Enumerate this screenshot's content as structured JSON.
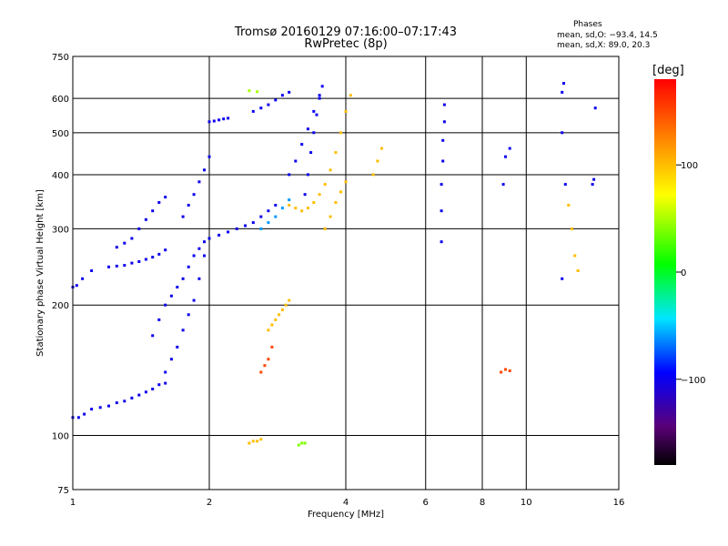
{
  "header": {
    "title_line1": "Tromsø 20160129 07:16:00–07:17:43",
    "title_line2": "RwPretec (8p)"
  },
  "stats": {
    "heading": "Phases",
    "line_o": "mean, sd,O: −93.4, 14.5",
    "line_x": "mean, sd,X: 89.0, 20.3"
  },
  "colorbar": {
    "label": "[deg]",
    "tick_labels": [
      "100",
      "0",
      "−100"
    ],
    "tick_values": [
      100,
      0,
      -100
    ],
    "range": [
      -180,
      180
    ]
  },
  "chart_data": {
    "type": "scatter",
    "title": "Tromsø 20160129 07:16:00–07:17:43",
    "subtitle": "RwPretec (8p)",
    "xlabel": "Frequency [MHz]",
    "ylabel": "Stationary phase Virtual Height [km]",
    "xscale": "log",
    "yscale": "log",
    "xlim": [
      1,
      16
    ],
    "ylim": [
      75,
      750
    ],
    "xticks": [
      1,
      2,
      4,
      6,
      8,
      10,
      16
    ],
    "xtick_labels": [
      "1",
      "2",
      "4",
      "6",
      "8",
      "10",
      "16"
    ],
    "yticks": [
      75,
      100,
      200,
      300,
      400,
      500,
      600,
      750
    ],
    "ytick_labels": [
      "75",
      "100",
      "200",
      "300",
      "400",
      "500",
      "600",
      "750"
    ],
    "grid": true,
    "color_variable": "phase [deg]",
    "traces": [
      {
        "phase": -100,
        "points": [
          [
            1.0,
            110
          ],
          [
            1.03,
            110
          ],
          [
            1.06,
            112
          ],
          [
            1.1,
            115
          ],
          [
            1.15,
            116
          ],
          [
            1.2,
            117
          ],
          [
            1.25,
            119
          ],
          [
            1.3,
            120
          ],
          [
            1.35,
            122
          ],
          [
            1.4,
            124
          ],
          [
            1.45,
            126
          ],
          [
            1.5,
            128
          ],
          [
            1.55,
            131
          ],
          [
            1.6,
            132
          ]
        ]
      },
      {
        "phase": -100,
        "points": [
          [
            1.0,
            220
          ],
          [
            1.02,
            222
          ],
          [
            1.05,
            230
          ],
          [
            1.1,
            240
          ]
        ]
      },
      {
        "phase": -100,
        "points": [
          [
            1.2,
            245
          ],
          [
            1.25,
            246
          ],
          [
            1.3,
            247
          ],
          [
            1.35,
            250
          ],
          [
            1.4,
            252
          ],
          [
            1.45,
            255
          ],
          [
            1.5,
            258
          ],
          [
            1.55,
            262
          ],
          [
            1.6,
            268
          ]
        ]
      },
      {
        "phase": -100,
        "points": [
          [
            1.25,
            272
          ],
          [
            1.3,
            278
          ],
          [
            1.35,
            285
          ],
          [
            1.4,
            300
          ],
          [
            1.45,
            315
          ],
          [
            1.5,
            330
          ],
          [
            1.55,
            345
          ],
          [
            1.6,
            355
          ]
        ]
      },
      {
        "phase": -100,
        "points": [
          [
            1.5,
            170
          ],
          [
            1.55,
            185
          ],
          [
            1.6,
            200
          ],
          [
            1.65,
            210
          ],
          [
            1.7,
            220
          ],
          [
            1.75,
            230
          ],
          [
            1.8,
            245
          ],
          [
            1.85,
            260
          ],
          [
            1.9,
            270
          ],
          [
            1.95,
            280
          ],
          [
            2.0,
            285
          ],
          [
            2.1,
            290
          ],
          [
            2.2,
            295
          ],
          [
            2.3,
            300
          ],
          [
            2.4,
            305
          ],
          [
            2.5,
            310
          ],
          [
            2.6,
            320
          ],
          [
            2.7,
            330
          ],
          [
            2.8,
            340
          ]
        ]
      },
      {
        "phase": -100,
        "points": [
          [
            1.6,
            140
          ],
          [
            1.65,
            150
          ],
          [
            1.7,
            160
          ],
          [
            1.75,
            175
          ],
          [
            1.8,
            190
          ],
          [
            1.85,
            205
          ],
          [
            1.9,
            230
          ],
          [
            1.95,
            260
          ]
        ]
      },
      {
        "phase": -100,
        "points": [
          [
            1.75,
            320
          ],
          [
            1.8,
            340
          ],
          [
            1.85,
            360
          ],
          [
            1.9,
            385
          ],
          [
            1.95,
            410
          ],
          [
            2.0,
            440
          ]
        ]
      },
      {
        "phase": -100,
        "points": [
          [
            2.0,
            530
          ],
          [
            2.05,
            532
          ],
          [
            2.1,
            535
          ],
          [
            2.15,
            538
          ],
          [
            2.2,
            540
          ]
        ]
      },
      {
        "phase": -100,
        "points": [
          [
            2.5,
            560
          ],
          [
            2.6,
            570
          ],
          [
            2.7,
            580
          ],
          [
            2.8,
            595
          ],
          [
            2.9,
            610
          ],
          [
            3.0,
            620
          ]
        ]
      },
      {
        "phase": -100,
        "points": [
          [
            3.0,
            400
          ],
          [
            3.1,
            430
          ],
          [
            3.2,
            470
          ],
          [
            3.3,
            510
          ],
          [
            3.4,
            560
          ],
          [
            3.5,
            610
          ]
        ]
      },
      {
        "phase": -100,
        "points": [
          [
            3.25,
            360
          ],
          [
            3.3,
            400
          ],
          [
            3.35,
            450
          ],
          [
            3.4,
            500
          ],
          [
            3.45,
            550
          ],
          [
            3.5,
            600
          ],
          [
            3.55,
            640
          ]
        ]
      },
      {
        "phase": -60,
        "points": [
          [
            2.6,
            300
          ],
          [
            2.7,
            310
          ],
          [
            2.8,
            320
          ],
          [
            2.9,
            335
          ],
          [
            3.0,
            350
          ]
        ]
      },
      {
        "phase": 50,
        "points": [
          [
            2.45,
            625
          ],
          [
            2.55,
            622
          ]
        ]
      },
      {
        "phase": 100,
        "points": [
          [
            3.0,
            340
          ],
          [
            3.1,
            335
          ],
          [
            3.2,
            330
          ],
          [
            3.3,
            335
          ],
          [
            3.4,
            345
          ],
          [
            3.5,
            360
          ],
          [
            3.6,
            380
          ],
          [
            3.7,
            410
          ],
          [
            3.8,
            450
          ],
          [
            3.9,
            500
          ],
          [
            4.0,
            560
          ],
          [
            4.1,
            610
          ]
        ]
      },
      {
        "phase": 100,
        "points": [
          [
            3.6,
            300
          ],
          [
            3.7,
            320
          ],
          [
            3.8,
            345
          ],
          [
            3.9,
            365
          ],
          [
            4.0,
            385
          ]
        ]
      },
      {
        "phase": 100,
        "points": [
          [
            4.6,
            400
          ],
          [
            4.7,
            430
          ],
          [
            4.8,
            460
          ]
        ]
      },
      {
        "phase": 100,
        "points": [
          [
            2.7,
            175
          ],
          [
            2.75,
            180
          ],
          [
            2.8,
            185
          ],
          [
            2.85,
            190
          ],
          [
            2.9,
            195
          ],
          [
            2.95,
            200
          ],
          [
            3.0,
            205
          ]
        ]
      },
      {
        "phase": 150,
        "points": [
          [
            2.6,
            140
          ],
          [
            2.65,
            145
          ],
          [
            2.7,
            150
          ],
          [
            2.75,
            160
          ]
        ]
      },
      {
        "phase": 100,
        "points": [
          [
            2.45,
            96
          ],
          [
            2.5,
            97
          ],
          [
            2.55,
            97
          ],
          [
            2.6,
            98
          ]
        ]
      },
      {
        "phase": 40,
        "points": [
          [
            3.15,
            95
          ],
          [
            3.2,
            96
          ],
          [
            3.25,
            96
          ]
        ]
      },
      {
        "phase": -100,
        "points": [
          [
            6.5,
            280
          ],
          [
            6.5,
            330
          ],
          [
            6.5,
            380
          ],
          [
            6.55,
            430
          ],
          [
            6.55,
            480
          ],
          [
            6.6,
            530
          ],
          [
            6.6,
            580
          ]
        ]
      },
      {
        "phase": -100,
        "points": [
          [
            8.9,
            380
          ],
          [
            9.0,
            440
          ],
          [
            9.2,
            460
          ]
        ]
      },
      {
        "phase": 150,
        "points": [
          [
            8.8,
            140
          ],
          [
            9.0,
            142
          ],
          [
            9.2,
            141
          ]
        ]
      },
      {
        "phase": -100,
        "points": [
          [
            12.0,
            620
          ],
          [
            12.1,
            650
          ],
          [
            12.0,
            500
          ],
          [
            12.2,
            380
          ],
          [
            12.0,
            230
          ]
        ]
      },
      {
        "phase": 100,
        "points": [
          [
            12.4,
            340
          ],
          [
            12.6,
            300
          ],
          [
            12.8,
            260
          ],
          [
            13.0,
            240
          ]
        ]
      },
      {
        "phase": -100,
        "points": [
          [
            14.0,
            380
          ],
          [
            14.1,
            390
          ],
          [
            14.2,
            570
          ]
        ]
      }
    ]
  }
}
